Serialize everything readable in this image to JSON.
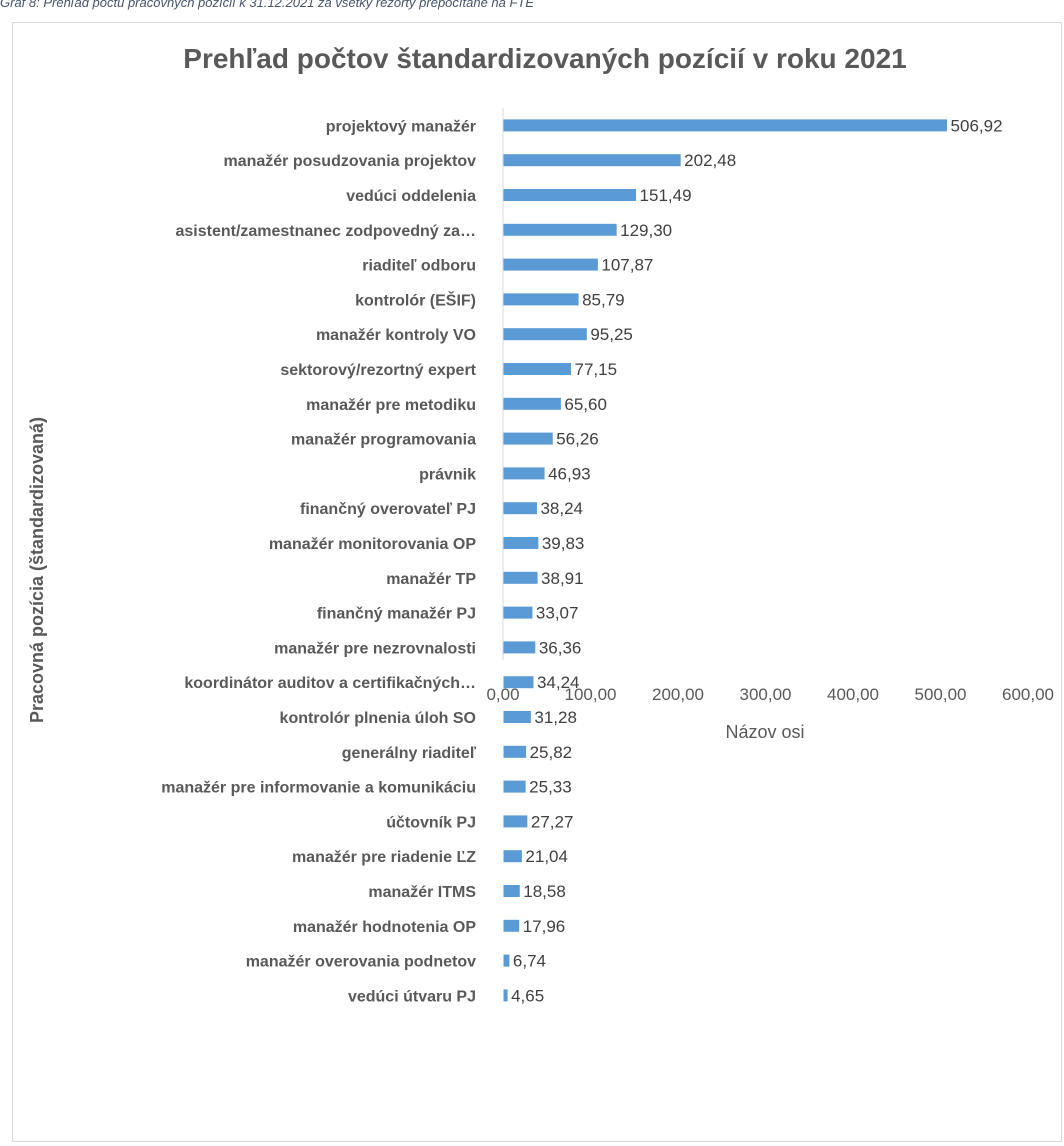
{
  "caption": "Graf 8: Prehľad počtu pracovných pozícií k 31.12.2021 za všetky rezorty prepočítané na FTE",
  "chart_data": {
    "type": "bar",
    "orientation": "horizontal",
    "title": "Prehľad počtov štandardizovaných pozícií v roku 2021",
    "xlabel": "Názov osi",
    "ylabel": "Pracovná pozícia (štandardizovaná)",
    "xlim": [
      0,
      600
    ],
    "xticks": [
      "0,00",
      "100,00",
      "200,00",
      "300,00",
      "400,00",
      "500,00",
      "600,00"
    ],
    "bar_color": "#5b9bd5",
    "grid": false,
    "legend": "none",
    "categories": [
      "projektový manažér",
      "manažér posudzovania projektov",
      "vedúci oddelenia",
      "asistent/zamestnanec zodpovedný za…",
      "riaditeľ odboru",
      "kontrolór (EŠIF)",
      "manažér kontroly VO",
      "sektorový/rezortný expert",
      "manažér pre metodiku",
      "manažér programovania",
      "právnik",
      "finančný overovateľ PJ",
      "manažér monitorovania OP",
      "manažér TP",
      "finančný manažér PJ",
      "manažér pre nezrovnalosti",
      "koordinátor auditov a certifikačných…",
      "kontrolór plnenia úloh SO",
      "generálny riaditeľ",
      "manažér pre informovanie a komunikáciu",
      "účtovník PJ",
      "manažér pre riadenie ĽZ",
      "manažér ITMS",
      "manažér hodnotenia OP",
      "manažér overovania podnetov",
      "vedúci útvaru PJ"
    ],
    "values": [
      506.92,
      202.48,
      151.49,
      129.3,
      107.87,
      85.79,
      95.25,
      77.15,
      65.6,
      56.26,
      46.93,
      38.24,
      39.83,
      38.91,
      33.07,
      36.36,
      34.24,
      31.28,
      25.82,
      25.33,
      27.27,
      21.04,
      18.58,
      17.96,
      6.74,
      4.65
    ],
    "data_labels": [
      "506,92",
      "202,48",
      "151,49",
      "129,30",
      "107,87",
      "85,79",
      "95,25",
      "77,15",
      "65,60",
      "56,26",
      "46,93",
      "38,24",
      "39,83",
      "38,91",
      "33,07",
      "36,36",
      "34,24",
      "31,28",
      "25,82",
      "25,33",
      "27,27",
      "21,04",
      "18,58",
      "17,96",
      "6,74",
      "4,65"
    ]
  }
}
